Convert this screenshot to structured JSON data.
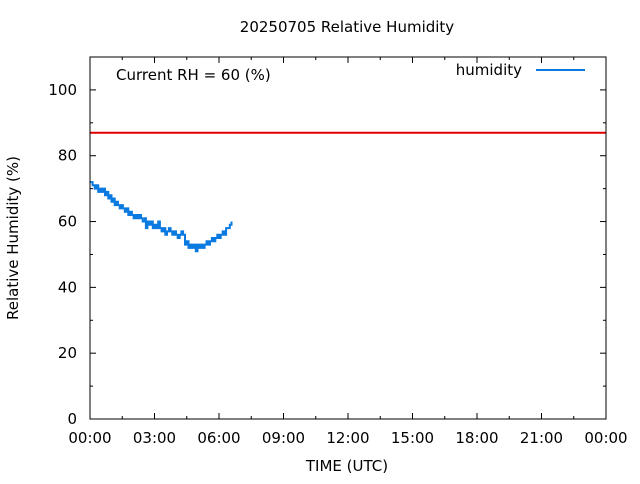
{
  "chart_data": {
    "type": "line",
    "title": "20250705 Relative Humidity",
    "xlabel": "TIME (UTC)",
    "ylabel": "Relative Humidity (%)",
    "annotation": "Current RH = 60 (%)",
    "xlim": [
      0,
      24
    ],
    "ylim": [
      0,
      110
    ],
    "x_tick_values": [
      0,
      3,
      6,
      9,
      12,
      15,
      18,
      21,
      24
    ],
    "x_tick_labels": [
      "00:00",
      "03:00",
      "06:00",
      "09:00",
      "12:00",
      "15:00",
      "18:00",
      "21:00",
      "00:00"
    ],
    "y_tick_values": [
      0,
      20,
      40,
      60,
      80,
      100
    ],
    "y_tick_labels": [
      "0",
      "20",
      "40",
      "60",
      "80",
      "100"
    ],
    "legend_position": "top-right",
    "threshold": {
      "y": 87,
      "color": "#e00000"
    },
    "series": [
      {
        "name": "humidity",
        "color": "#0a7ae0",
        "step": true,
        "x": [
          0.0,
          0.12,
          0.22,
          0.3,
          0.38,
          0.47,
          0.55,
          0.62,
          0.7,
          0.78,
          0.85,
          0.92,
          1.0,
          1.07,
          1.15,
          1.22,
          1.3,
          1.38,
          1.45,
          1.53,
          1.62,
          1.7,
          1.78,
          1.87,
          1.95,
          2.03,
          2.12,
          2.2,
          2.28,
          2.37,
          2.45,
          2.55,
          2.6,
          2.67,
          2.75,
          2.83,
          2.92,
          3.0,
          3.08,
          3.17,
          3.25,
          3.33,
          3.42,
          3.5,
          3.58,
          3.67,
          3.75,
          3.83,
          3.92,
          4.0,
          4.08,
          4.17,
          4.25,
          4.33,
          4.42,
          4.5,
          4.58,
          4.67,
          4.75,
          4.83,
          4.92,
          5.0,
          5.08,
          5.17,
          5.25,
          5.33,
          5.42,
          5.5,
          5.58,
          5.67,
          5.75,
          5.83,
          5.92,
          6.0,
          6.08,
          6.17,
          6.25,
          6.33,
          6.42,
          6.5,
          6.58
        ],
        "y": [
          72,
          71,
          70,
          71,
          69,
          70,
          69,
          70,
          68,
          69,
          67,
          68,
          66,
          67,
          65,
          66,
          65,
          64,
          65,
          64,
          63,
          64,
          62,
          63,
          62,
          61,
          62,
          61,
          62,
          61,
          60,
          61,
          58,
          60,
          59,
          60,
          58,
          59,
          58,
          60,
          58,
          57,
          58,
          56,
          57,
          58,
          57,
          56,
          57,
          56,
          55,
          56,
          57,
          56,
          53,
          54,
          52,
          53,
          52,
          53,
          51,
          53,
          52,
          53,
          52,
          53,
          54,
          53,
          54,
          55,
          54,
          55,
          56,
          55,
          56,
          57,
          56,
          58,
          58,
          59,
          60
        ]
      }
    ]
  }
}
